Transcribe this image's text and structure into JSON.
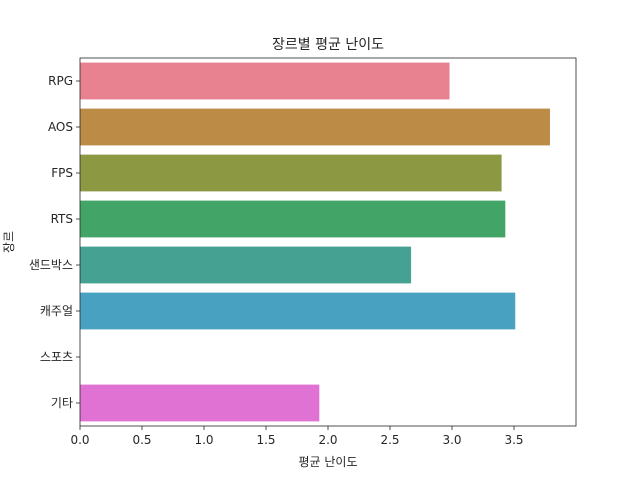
{
  "chart_data": {
    "type": "bar",
    "orientation": "horizontal",
    "title": "장르별 평균 난이도",
    "xlabel": "평균 난이도",
    "ylabel": "장르",
    "categories": [
      "RPG",
      "AOS",
      "FPS",
      "RTS",
      "샌드박스",
      "캐주얼",
      "스포츠",
      "기타"
    ],
    "values": [
      2.98,
      3.79,
      3.4,
      3.43,
      2.67,
      3.51,
      null,
      1.93
    ],
    "colors": [
      "#e88190",
      "#bc8b45",
      "#8c9842",
      "#43a467",
      "#45a191",
      "#49a1c1",
      "#a48be8",
      "#e072d3"
    ],
    "xlim": [
      0,
      4.0
    ],
    "xticks": [
      "0.0",
      "0.5",
      "1.0",
      "1.5",
      "2.0",
      "2.5",
      "3.0",
      "3.5"
    ],
    "grid": false,
    "legend": "none"
  }
}
